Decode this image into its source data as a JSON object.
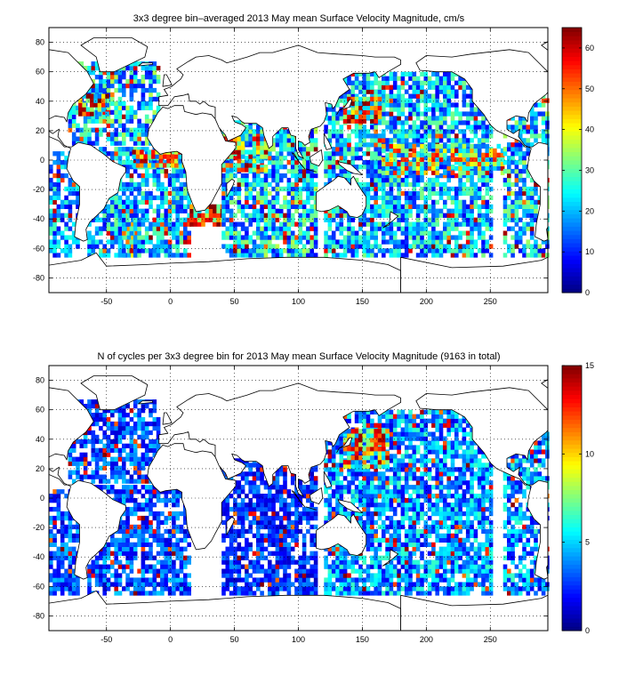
{
  "chart_data": [
    {
      "type": "heatmap",
      "title": "3x3 degree bin–averaged 2013 May mean Surface Velocity Magnitude, cm/s",
      "xlabel": "",
      "ylabel": "",
      "xlim": [
        -95,
        295
      ],
      "ylim": [
        -90,
        90
      ],
      "xticks": [
        -50,
        0,
        50,
        100,
        150,
        200,
        250
      ],
      "yticks": [
        -80,
        -60,
        -40,
        -20,
        0,
        20,
        40,
        60,
        80
      ],
      "grid": "dotted",
      "colorbar": {
        "min": 0,
        "max": 65,
        "ticks": [
          0,
          10,
          20,
          30,
          40,
          50,
          60
        ],
        "colormap": "jet"
      },
      "regions": [
        {
          "lon": [
            -80,
            -10
          ],
          "lat": [
            10,
            66
          ],
          "level": 22,
          "density": 0.75
        },
        {
          "lon": [
            -40,
            -25
          ],
          "lat": [
            -66,
            -30
          ],
          "level": 30,
          "density": 0.8
        },
        {
          "lon": [
            -95,
            -72
          ],
          "lat": [
            -66,
            6
          ],
          "level": 18,
          "density": 0.75
        },
        {
          "lon": [
            -65,
            15
          ],
          "lat": [
            -66,
            8
          ],
          "level": 20,
          "density": 0.75
        },
        {
          "lon": [
            -72,
            -50
          ],
          "lat": [
            30,
            45
          ],
          "level": 42,
          "density": 0.85
        },
        {
          "lon": [
            -30,
            10
          ],
          "lat": [
            -5,
            5
          ],
          "level": 38,
          "density": 0.8
        },
        {
          "lon": [
            15,
            40
          ],
          "lat": [
            -45,
            -30
          ],
          "level": 48,
          "density": 0.85
        },
        {
          "lon": [
            40,
            115
          ],
          "lat": [
            -66,
            26
          ],
          "level": 22,
          "density": 0.8
        },
        {
          "lon": [
            40,
            75
          ],
          "lat": [
            -8,
            15
          ],
          "level": 40,
          "density": 0.8
        },
        {
          "lon": [
            120,
            250
          ],
          "lat": [
            -66,
            60
          ],
          "level": 20,
          "density": 0.78
        },
        {
          "lon": [
            135,
            165
          ],
          "lat": [
            25,
            42
          ],
          "level": 45,
          "density": 0.85
        },
        {
          "lon": [
            165,
            260
          ],
          "lat": [
            -10,
            10
          ],
          "level": 35,
          "density": 0.75
        },
        {
          "lon": [
            260,
            295
          ],
          "lat": [
            -66,
            45
          ],
          "level": 22,
          "density": 0.7
        }
      ]
    },
    {
      "type": "heatmap",
      "title": "N of cycles per 3x3 degree bin for 2013 May mean Surface Velocity Magnitude (9163 in total)",
      "xlabel": "",
      "ylabel": "",
      "xlim": [
        -95,
        295
      ],
      "ylim": [
        -90,
        90
      ],
      "xticks": [
        -50,
        0,
        50,
        100,
        150,
        200,
        250
      ],
      "yticks": [
        -80,
        -60,
        -40,
        -20,
        0,
        20,
        40,
        60,
        80
      ],
      "grid": "dotted",
      "colorbar": {
        "min": 0,
        "max": 15,
        "ticks": [
          0,
          5,
          10,
          15
        ],
        "colormap": "jet"
      },
      "total": 9163,
      "regions": [
        {
          "lon": [
            -80,
            -10
          ],
          "lat": [
            10,
            66
          ],
          "level": 3,
          "density": 0.7
        },
        {
          "lon": [
            -95,
            -72
          ],
          "lat": [
            -66,
            6
          ],
          "level": 3,
          "density": 0.75
        },
        {
          "lon": [
            -65,
            15
          ],
          "lat": [
            -66,
            8
          ],
          "level": 3,
          "density": 0.7
        },
        {
          "lon": [
            40,
            115
          ],
          "lat": [
            -66,
            26
          ],
          "level": 2.5,
          "density": 0.75
        },
        {
          "lon": [
            120,
            250
          ],
          "lat": [
            -66,
            60
          ],
          "level": 4,
          "density": 0.8
        },
        {
          "lon": [
            135,
            170
          ],
          "lat": [
            20,
            45
          ],
          "level": 9,
          "density": 0.85
        },
        {
          "lon": [
            260,
            295
          ],
          "lat": [
            -66,
            45
          ],
          "level": 4,
          "density": 0.7
        }
      ]
    }
  ]
}
